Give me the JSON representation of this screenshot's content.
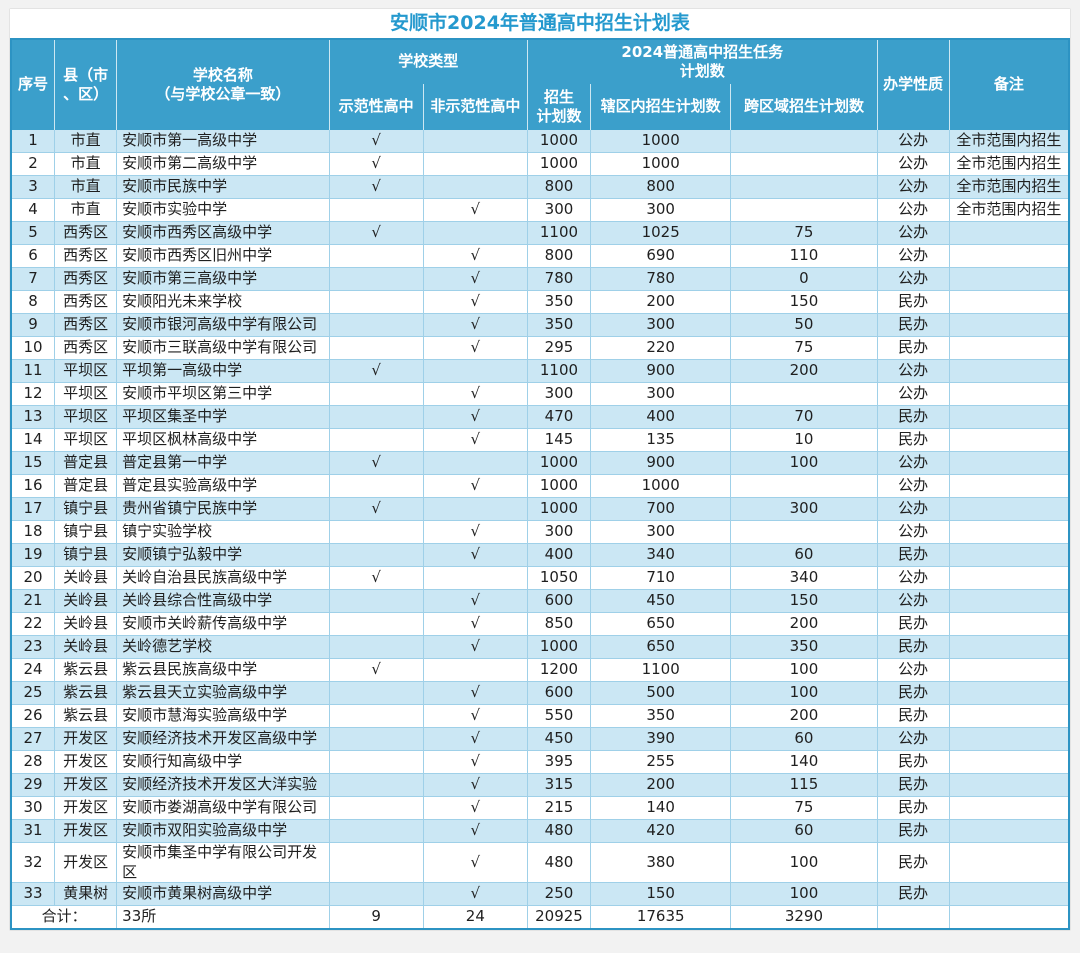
{
  "title": "安顺市2024年普通高中招生计划表",
  "colors": {
    "title_color": "#2499CE",
    "header_bg": "#3B9FCB",
    "header_text": "#ffffff",
    "row_alt": "#CBE7F4",
    "cell_border": "#9FD0E8",
    "outer_border": "#2C93C3"
  },
  "table": {
    "headers": {
      "seq": "序号",
      "county_line1": "县（市",
      "county_line2": "、区）",
      "school_name_line1": "学校名称",
      "school_name_line2": "（与学校公章一致）",
      "school_type": "学校类型",
      "demonstration": "示范性高中",
      "non_demonstration": "非示范性高中",
      "task_group_line1": "2024普通高中招生任务",
      "task_group_line2": "计划数",
      "enroll_plan_line1": "招生",
      "enroll_plan_line2": "计划数",
      "in_district": "辖区内招生计划数",
      "cross_region": "跨区域招生计划数",
      "nature": "办学性质",
      "remark": "备注"
    },
    "check_mark": "√",
    "rows": [
      [
        "1",
        "市直",
        "安顺市第一高级中学",
        "√",
        "",
        "1000",
        "1000",
        "",
        "公办",
        "全市范围内招生"
      ],
      [
        "2",
        "市直",
        "安顺市第二高级中学",
        "√",
        "",
        "1000",
        "1000",
        "",
        "公办",
        "全市范围内招生"
      ],
      [
        "3",
        "市直",
        "安顺市民族中学",
        "√",
        "",
        "800",
        "800",
        "",
        "公办",
        "全市范围内招生"
      ],
      [
        "4",
        "市直",
        "安顺市实验中学",
        "",
        "√",
        "300",
        "300",
        "",
        "公办",
        "全市范围内招生"
      ],
      [
        "5",
        "西秀区",
        "安顺市西秀区高级中学",
        "√",
        "",
        "1100",
        "1025",
        "75",
        "公办",
        ""
      ],
      [
        "6",
        "西秀区",
        "安顺市西秀区旧州中学",
        "",
        "√",
        "800",
        "690",
        "110",
        "公办",
        ""
      ],
      [
        "7",
        "西秀区",
        "安顺市第三高级中学",
        "",
        "√",
        "780",
        "780",
        "0",
        "公办",
        ""
      ],
      [
        "8",
        "西秀区",
        "安顺阳光未来学校",
        "",
        "√",
        "350",
        "200",
        "150",
        "民办",
        ""
      ],
      [
        "9",
        "西秀区",
        "安顺市银河高级中学有限公司",
        "",
        "√",
        "350",
        "300",
        "50",
        "民办",
        ""
      ],
      [
        "10",
        "西秀区",
        "安顺市三联高级中学有限公司",
        "",
        "√",
        "295",
        "220",
        "75",
        "民办",
        ""
      ],
      [
        "11",
        "平坝区",
        "平坝第一高级中学",
        "√",
        "",
        "1100",
        "900",
        "200",
        "公办",
        ""
      ],
      [
        "12",
        "平坝区",
        "安顺市平坝区第三中学",
        "",
        "√",
        "300",
        "300",
        "",
        "公办",
        ""
      ],
      [
        "13",
        "平坝区",
        "平坝区集圣中学",
        "",
        "√",
        "470",
        "400",
        "70",
        "民办",
        ""
      ],
      [
        "14",
        "平坝区",
        "平坝区枫林高级中学",
        "",
        "√",
        "145",
        "135",
        "10",
        "民办",
        ""
      ],
      [
        "15",
        "普定县",
        "普定县第一中学",
        "√",
        "",
        "1000",
        "900",
        "100",
        "公办",
        ""
      ],
      [
        "16",
        "普定县",
        "普定县实验高级中学",
        "",
        "√",
        "1000",
        "1000",
        "",
        "公办",
        ""
      ],
      [
        "17",
        "镇宁县",
        "贵州省镇宁民族中学",
        "√",
        "",
        "1000",
        "700",
        "300",
        "公办",
        ""
      ],
      [
        "18",
        "镇宁县",
        "镇宁实验学校",
        "",
        "√",
        "300",
        "300",
        "",
        "公办",
        ""
      ],
      [
        "19",
        "镇宁县",
        "安顺镇宁弘毅中学",
        "",
        "√",
        "400",
        "340",
        "60",
        "民办",
        ""
      ],
      [
        "20",
        "关岭县",
        "关岭自治县民族高级中学",
        "√",
        "",
        "1050",
        "710",
        "340",
        "公办",
        ""
      ],
      [
        "21",
        "关岭县",
        "关岭县综合性高级中学",
        "",
        "√",
        "600",
        "450",
        "150",
        "公办",
        ""
      ],
      [
        "22",
        "关岭县",
        "安顺市关岭薪传高级中学",
        "",
        "√",
        "850",
        "650",
        "200",
        "民办",
        ""
      ],
      [
        "23",
        "关岭县",
        "关岭德艺学校",
        "",
        "√",
        "1000",
        "650",
        "350",
        "民办",
        ""
      ],
      [
        "24",
        "紫云县",
        "紫云县民族高级中学",
        "√",
        "",
        "1200",
        "1100",
        "100",
        "公办",
        ""
      ],
      [
        "25",
        "紫云县",
        "紫云县天立实验高级中学",
        "",
        "√",
        "600",
        "500",
        "100",
        "民办",
        ""
      ],
      [
        "26",
        "紫云县",
        "安顺市慧海实验高级中学",
        "",
        "√",
        "550",
        "350",
        "200",
        "民办",
        ""
      ],
      [
        "27",
        "开发区",
        "安顺经济技术开发区高级中学",
        "",
        "√",
        "450",
        "390",
        "60",
        "公办",
        ""
      ],
      [
        "28",
        "开发区",
        "安顺行知高级中学",
        "",
        "√",
        "395",
        "255",
        "140",
        "民办",
        ""
      ],
      [
        "29",
        "开发区",
        "安顺经济技术开发区大洋实验",
        "",
        "√",
        "315",
        "200",
        "115",
        "民办",
        ""
      ],
      [
        "30",
        "开发区",
        "安顺市娄湖高级中学有限公司",
        "",
        "√",
        "215",
        "140",
        "75",
        "民办",
        ""
      ],
      [
        "31",
        "开发区",
        "安顺市双阳实验高级中学",
        "",
        "√",
        "480",
        "420",
        "60",
        "民办",
        ""
      ],
      [
        "32",
        "开发区",
        "安顺市集圣中学有限公司开发区",
        "",
        "√",
        "480",
        "380",
        "100",
        "民办",
        ""
      ],
      [
        "33",
        "黄果树",
        "安顺市黄果树高级中学",
        "",
        "√",
        "250",
        "150",
        "100",
        "民办",
        ""
      ]
    ],
    "total": {
      "label": "合计：",
      "count": "33所",
      "demonstration": "9",
      "non_demonstration": "24",
      "plan": "20925",
      "in_district": "17635",
      "cross_region": "3290",
      "nature": "",
      "remark": ""
    }
  }
}
